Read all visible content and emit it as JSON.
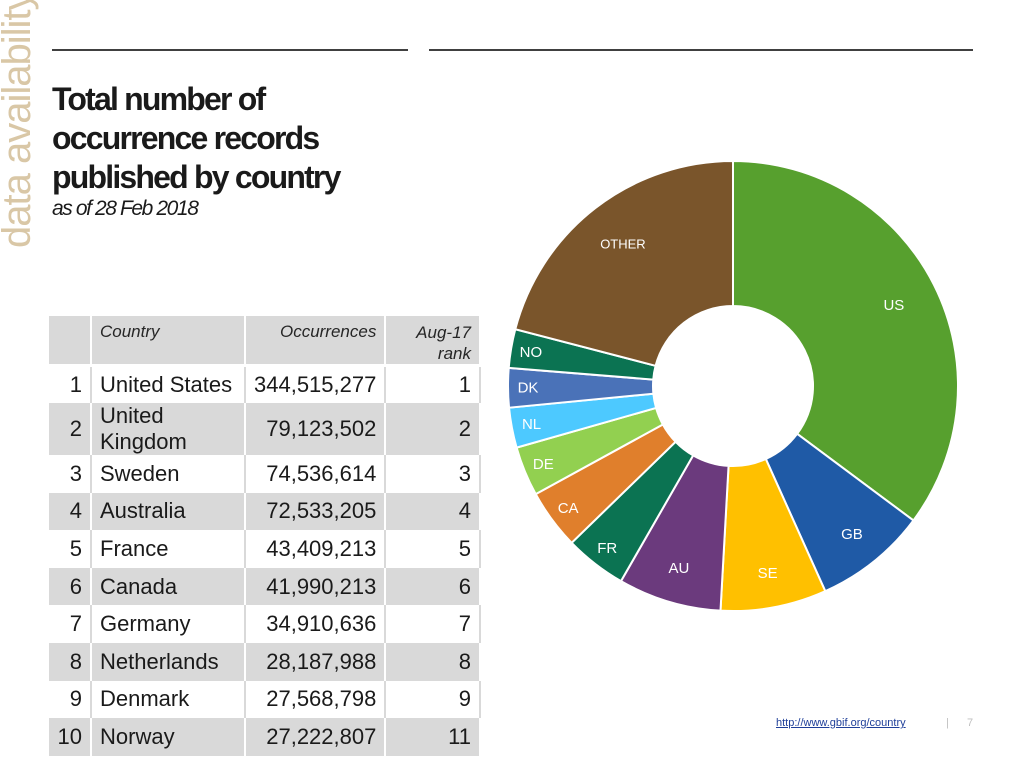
{
  "side_tab": "data availability",
  "title": "Total number of occurrence records published by country",
  "subtitle": "as of 28 Feb 2018",
  "table": {
    "headers": {
      "rank": "",
      "country": "Country",
      "occurrences": "Occurrences",
      "aug_line1": "Aug-17",
      "aug_line2": "rank"
    },
    "rows": [
      {
        "rank": "1",
        "country": "United States",
        "occurrences": "344,515,277",
        "aug_rank": "1"
      },
      {
        "rank": "2",
        "country": "United Kingdom",
        "occurrences": "79,123,502",
        "aug_rank": "2"
      },
      {
        "rank": "3",
        "country": "Sweden",
        "occurrences": "74,536,614",
        "aug_rank": "3"
      },
      {
        "rank": "4",
        "country": "Australia",
        "occurrences": "72,533,205",
        "aug_rank": "4"
      },
      {
        "rank": "5",
        "country": "France",
        "occurrences": "43,409,213",
        "aug_rank": "5"
      },
      {
        "rank": "6",
        "country": "Canada",
        "occurrences": "41,990,213",
        "aug_rank": "6"
      },
      {
        "rank": "7",
        "country": "Germany",
        "occurrences": "34,910,636",
        "aug_rank": "7"
      },
      {
        "rank": "8",
        "country": "Netherlands",
        "occurrences": "28,187,988",
        "aug_rank": "8"
      },
      {
        "rank": "9",
        "country": "Denmark",
        "occurrences": "27,568,798",
        "aug_rank": "9"
      },
      {
        "rank": "10",
        "country": "Norway",
        "occurrences": "27,222,807",
        "aug_rank": "11"
      }
    ]
  },
  "chart_data": {
    "type": "pie",
    "donut": true,
    "labels": [
      "US",
      "GB",
      "SE",
      "AU",
      "FR",
      "CA",
      "DE",
      "NL",
      "DK",
      "NO",
      "OTHER"
    ],
    "values": [
      344515277,
      79123502,
      74536614,
      72533205,
      43409213,
      41990213,
      34910636,
      28187988,
      27568798,
      27222807,
      205000000
    ],
    "colors": [
      "#57a02e",
      "#1f5aa6",
      "#ffc000",
      "#6b3a7d",
      "#0b7352",
      "#e07f2c",
      "#92d050",
      "#4dc9ff",
      "#4a72b8",
      "#0b7352",
      "#7a552b"
    ],
    "legend": "none"
  },
  "footer": {
    "link": "http://www.gbif.org/country",
    "separator": "|",
    "page": "7"
  }
}
